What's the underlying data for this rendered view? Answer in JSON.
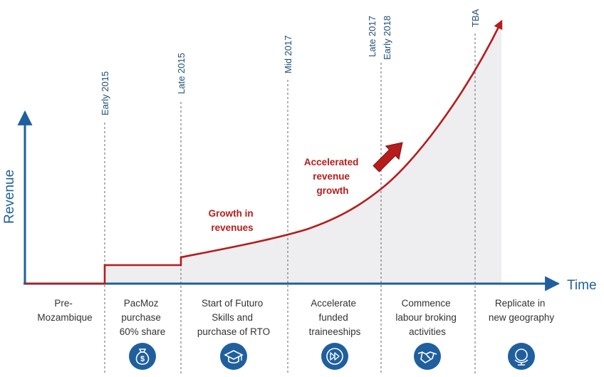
{
  "axes": {
    "y_label": "Revenue",
    "x_label": "Time"
  },
  "milestones": [
    {
      "id": "early-2015",
      "label": "Early 2015"
    },
    {
      "id": "late-2015",
      "label": "Late 2015"
    },
    {
      "id": "mid-2017",
      "label": "Mid 2017"
    },
    {
      "id": "late-2017",
      "label": "Late 2017"
    },
    {
      "id": "early-2018",
      "label": "Early 2018"
    },
    {
      "id": "tba",
      "label": "TBA"
    }
  ],
  "phases": [
    {
      "id": "pre-mozambique",
      "lines": [
        "Pre-",
        "Mozambique"
      ],
      "icon": ""
    },
    {
      "id": "pacmoz-purchase",
      "lines": [
        "PacMoz",
        "purchase",
        "60% share"
      ],
      "icon": "money-bag-icon"
    },
    {
      "id": "futuro-skills",
      "lines": [
        "Start of Futuro",
        "Skills and",
        "purchase of RTO"
      ],
      "icon": "graduation-cap-icon"
    },
    {
      "id": "traineeships",
      "lines": [
        "Accelerate",
        "funded",
        "traineeships"
      ],
      "icon": "fast-forward-icon"
    },
    {
      "id": "labour-broking",
      "lines": [
        "Commence",
        "labour broking",
        "activities"
      ],
      "icon": "handshake-icon"
    },
    {
      "id": "new-geography",
      "lines": [
        "Replicate in",
        "new geography"
      ],
      "icon": "globe-icon"
    }
  ],
  "annotations": {
    "growth": [
      "Growth in",
      "revenues"
    ],
    "accelerated": [
      "Accelerated",
      "revenue",
      "growth"
    ]
  },
  "colors": {
    "axis": "#1f5f9e",
    "curve": "#b71c1c",
    "fill": "#eeeef1",
    "icon_bg": "#1f5f9e",
    "milestone_text": "#1f4e79"
  }
}
